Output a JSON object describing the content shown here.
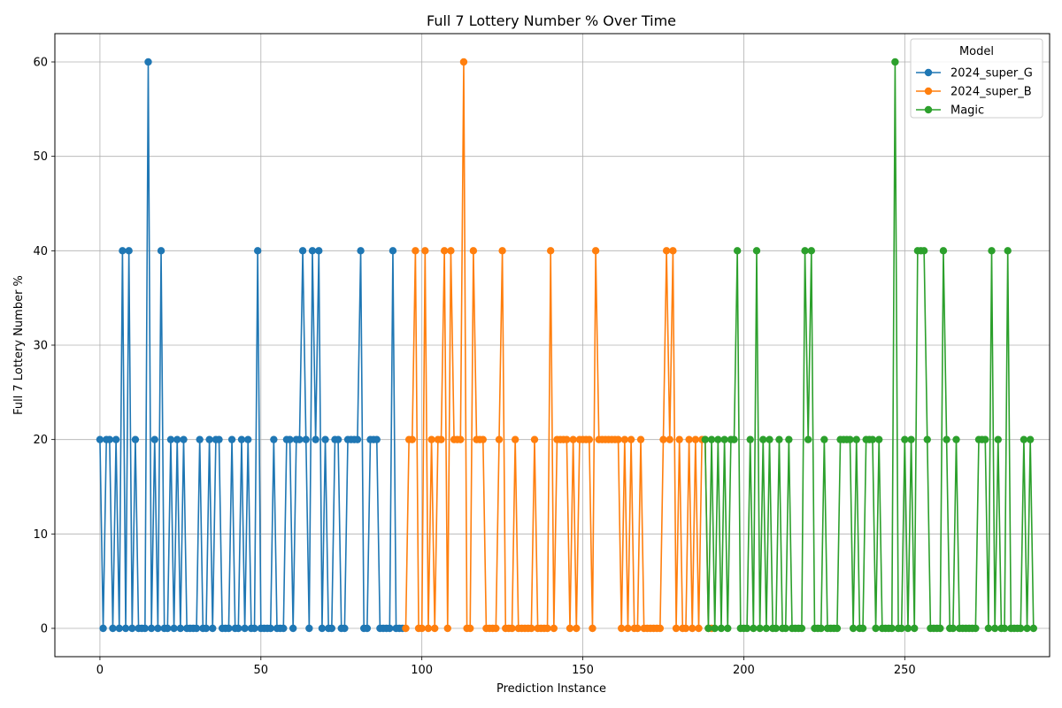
{
  "chart_data": {
    "type": "line",
    "title": "Full 7 Lottery Number % Over Time",
    "xlabel": "Prediction Instance",
    "ylabel": "Full 7 Lottery Number %",
    "xlim": [
      -14,
      295
    ],
    "ylim": [
      -3,
      63
    ],
    "xticks": [
      0,
      50,
      100,
      150,
      200,
      250
    ],
    "yticks": [
      0,
      10,
      20,
      30,
      40,
      50,
      60
    ],
    "grid": true,
    "legend": {
      "title": "Model",
      "placement": "top-right"
    },
    "series": [
      {
        "name": "2024_super_G",
        "color": "#1f77b4",
        "x0": 0,
        "values": [
          20,
          0,
          20,
          20,
          0,
          20,
          0,
          40,
          0,
          40,
          0,
          20,
          0,
          0,
          0,
          60,
          0,
          20,
          0,
          40,
          0,
          0,
          20,
          0,
          20,
          0,
          20,
          0,
          0,
          0,
          0,
          20,
          0,
          0,
          20,
          0,
          20,
          20,
          0,
          0,
          0,
          20,
          0,
          0,
          20,
          0,
          20,
          0,
          0,
          40,
          0,
          0,
          0,
          0,
          20,
          0,
          0,
          0,
          20,
          20,
          0,
          20,
          20,
          40,
          20,
          0,
          40,
          20,
          40,
          0,
          20,
          0,
          0,
          20,
          20,
          0,
          0,
          20,
          20,
          20,
          20,
          40,
          0,
          0,
          20,
          20,
          20,
          0,
          0,
          0,
          0,
          40,
          0,
          0,
          0
        ]
      },
      {
        "name": "2024_super_B",
        "color": "#ff7f0e",
        "x0": 95,
        "values": [
          0,
          20,
          20,
          40,
          0,
          0,
          40,
          0,
          20,
          0,
          20,
          20,
          40,
          0,
          40,
          20,
          20,
          20,
          60,
          0,
          0,
          40,
          20,
          20,
          20,
          0,
          0,
          0,
          0,
          20,
          40,
          0,
          0,
          0,
          20,
          0,
          0,
          0,
          0,
          0,
          20,
          0,
          0,
          0,
          0,
          40,
          0,
          20,
          20,
          20,
          20,
          0,
          20,
          0,
          20,
          20,
          20,
          20,
          0,
          40,
          20,
          20,
          20,
          20,
          20,
          20,
          20,
          0,
          20,
          0,
          20,
          0,
          0,
          20,
          0,
          0,
          0,
          0,
          0,
          0,
          20,
          40,
          20,
          40,
          0,
          20,
          0,
          0,
          20,
          0,
          20,
          0,
          20,
          20,
          0,
          0
        ]
      },
      {
        "name": "Magic",
        "color": "#2ca02c",
        "x0": 188,
        "values": [
          20,
          0,
          20,
          0,
          20,
          0,
          20,
          0,
          20,
          20,
          40,
          0,
          0,
          0,
          20,
          0,
          40,
          0,
          20,
          0,
          20,
          0,
          0,
          20,
          0,
          0,
          20,
          0,
          0,
          0,
          0,
          40,
          20,
          40,
          0,
          0,
          0,
          20,
          0,
          0,
          0,
          0,
          20,
          20,
          20,
          20,
          0,
          20,
          0,
          0,
          20,
          20,
          20,
          0,
          20,
          0,
          0,
          0,
          0,
          60,
          0,
          0,
          20,
          0,
          20,
          0,
          40,
          40,
          40,
          20,
          0,
          0,
          0,
          0,
          40,
          20,
          0,
          0,
          20,
          0,
          0,
          0,
          0,
          0,
          0,
          20,
          20,
          20,
          0,
          40,
          0,
          20,
          0,
          0,
          40,
          0,
          0,
          0,
          0,
          20,
          0,
          20,
          0
        ]
      }
    ]
  }
}
